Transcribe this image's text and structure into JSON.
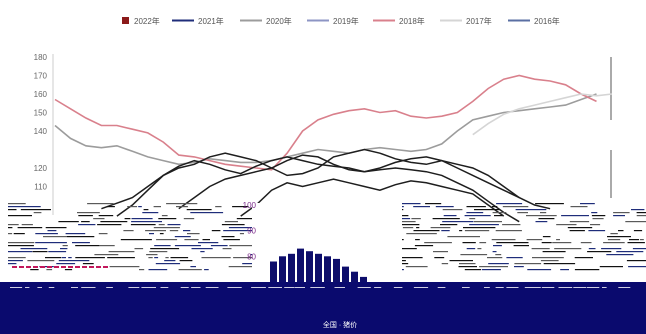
{
  "chart_data": {
    "type": "line",
    "title": "",
    "xlabel": "",
    "ylabel": "",
    "ylim": [
      100,
      180
    ],
    "yticks": [
      110,
      120,
      140,
      150,
      160,
      170,
      180
    ],
    "grid": false,
    "legend_position": "top-center",
    "series": [
      {
        "name": "2022年",
        "color": "#8b1a1a",
        "marker": "square",
        "points": []
      },
      {
        "name": "2021年",
        "color": "#1f2d7a",
        "marker": "line",
        "points": []
      },
      {
        "name": "2020年",
        "color": "#9c9c9c",
        "marker": "line",
        "points": [
          [
            0,
            143
          ],
          [
            1,
            136
          ],
          [
            2,
            132
          ],
          [
            3,
            131
          ],
          [
            4,
            132
          ],
          [
            5,
            129
          ],
          [
            6,
            126
          ],
          [
            7,
            124
          ],
          [
            8,
            122
          ],
          [
            9,
            123
          ],
          [
            10,
            125
          ],
          [
            11,
            124
          ],
          [
            12,
            123
          ],
          [
            13,
            123
          ],
          [
            14,
            124
          ],
          [
            15,
            126
          ],
          [
            16,
            128
          ],
          [
            17,
            130
          ],
          [
            18,
            129
          ],
          [
            19,
            128
          ],
          [
            20,
            130
          ],
          [
            21,
            131
          ],
          [
            22,
            130
          ],
          [
            23,
            129
          ],
          [
            24,
            130
          ],
          [
            25,
            133
          ],
          [
            26,
            140
          ],
          [
            27,
            146
          ],
          [
            28,
            148
          ],
          [
            29,
            150
          ],
          [
            30,
            151
          ],
          [
            31,
            152
          ],
          [
            32,
            153
          ],
          [
            33,
            154
          ],
          [
            34,
            157
          ],
          [
            35,
            160
          ]
        ]
      },
      {
        "name": "2019年",
        "color": "#8d95c4",
        "marker": "line",
        "points": []
      },
      {
        "name": "2018年",
        "color": "#d9808c",
        "marker": "line",
        "points": [
          [
            0,
            157
          ],
          [
            1,
            152
          ],
          [
            2,
            147
          ],
          [
            3,
            143
          ],
          [
            4,
            143
          ],
          [
            5,
            141
          ],
          [
            6,
            139
          ],
          [
            7,
            134
          ],
          [
            8,
            127
          ],
          [
            9,
            126
          ],
          [
            10,
            124
          ],
          [
            11,
            122
          ],
          [
            12,
            121
          ],
          [
            13,
            120
          ],
          [
            14,
            119
          ],
          [
            15,
            128
          ],
          [
            16,
            140
          ],
          [
            17,
            146
          ],
          [
            18,
            149
          ],
          [
            19,
            151
          ],
          [
            20,
            152
          ],
          [
            21,
            150
          ],
          [
            22,
            151
          ],
          [
            23,
            148
          ],
          [
            24,
            147
          ],
          [
            25,
            148
          ],
          [
            26,
            150
          ],
          [
            27,
            156
          ],
          [
            28,
            163
          ],
          [
            29,
            168
          ],
          [
            30,
            170
          ],
          [
            31,
            168
          ],
          [
            32,
            167
          ],
          [
            33,
            165
          ],
          [
            34,
            160
          ],
          [
            35,
            156
          ]
        ]
      },
      {
        "name": "2017年",
        "color": "#d5d5d5",
        "marker": "line",
        "points": [
          [
            27,
            138
          ],
          [
            28,
            144
          ],
          [
            29,
            149
          ],
          [
            30,
            152
          ],
          [
            31,
            154
          ],
          [
            32,
            156
          ],
          [
            33,
            158
          ],
          [
            34,
            160
          ],
          [
            35,
            159
          ],
          [
            36,
            160
          ]
        ]
      },
      {
        "name": "2016年",
        "color": "#5a6fa3",
        "marker": "line",
        "points": []
      }
    ],
    "dark_series": [
      [
        [
          4,
          94
        ],
        [
          5,
          100
        ],
        [
          6,
          108
        ],
        [
          7,
          116
        ],
        [
          8,
          121
        ],
        [
          9,
          124
        ],
        [
          10,
          122
        ],
        [
          11,
          119
        ],
        [
          12,
          117
        ],
        [
          13,
          121
        ],
        [
          14,
          124
        ],
        [
          15,
          126
        ],
        [
          16,
          124
        ],
        [
          17,
          122
        ],
        [
          18,
          121
        ],
        [
          19,
          120
        ],
        [
          20,
          118
        ],
        [
          21,
          119
        ],
        [
          22,
          120
        ],
        [
          23,
          119
        ],
        [
          24,
          118
        ],
        [
          25,
          116
        ],
        [
          26,
          112
        ],
        [
          27,
          108
        ],
        [
          28,
          102
        ],
        [
          29,
          96
        ],
        [
          30,
          91
        ]
      ],
      [
        [
          3,
          98
        ],
        [
          4,
          101
        ],
        [
          5,
          104
        ],
        [
          6,
          110
        ],
        [
          7,
          116
        ],
        [
          8,
          120
        ],
        [
          9,
          122
        ],
        [
          10,
          126
        ],
        [
          11,
          128
        ],
        [
          12,
          126
        ],
        [
          13,
          124
        ],
        [
          14,
          120
        ],
        [
          15,
          116
        ],
        [
          16,
          117
        ],
        [
          17,
          120
        ],
        [
          18,
          126
        ],
        [
          19,
          128
        ],
        [
          20,
          130
        ],
        [
          21,
          128
        ],
        [
          22,
          125
        ],
        [
          23,
          123
        ],
        [
          24,
          122
        ],
        [
          25,
          124
        ],
        [
          26,
          122
        ],
        [
          27,
          120
        ],
        [
          28,
          116
        ],
        [
          29,
          110
        ],
        [
          30,
          104
        ],
        [
          31,
          100
        ],
        [
          32,
          98
        ]
      ],
      [
        [
          8,
          98
        ],
        [
          9,
          104
        ],
        [
          10,
          110
        ],
        [
          11,
          114
        ],
        [
          12,
          116
        ],
        [
          13,
          118
        ],
        [
          14,
          120
        ],
        [
          15,
          124
        ],
        [
          16,
          127
        ],
        [
          17,
          126
        ],
        [
          18,
          122
        ],
        [
          19,
          119
        ],
        [
          20,
          118
        ],
        [
          21,
          120
        ],
        [
          22,
          123
        ],
        [
          23,
          125
        ],
        [
          24,
          126
        ],
        [
          25,
          124
        ],
        [
          26,
          120
        ],
        [
          27,
          116
        ],
        [
          28,
          112
        ],
        [
          29,
          108
        ],
        [
          30,
          104
        ]
      ],
      [
        [
          12,
          94
        ],
        [
          13,
          100
        ],
        [
          14,
          108
        ],
        [
          15,
          112
        ],
        [
          16,
          110
        ],
        [
          17,
          112
        ],
        [
          18,
          114
        ],
        [
          19,
          112
        ],
        [
          20,
          110
        ],
        [
          21,
          108
        ],
        [
          22,
          111
        ],
        [
          23,
          113
        ],
        [
          24,
          112
        ],
        [
          25,
          110
        ],
        [
          26,
          108
        ],
        [
          27,
          106
        ],
        [
          28,
          100
        ],
        [
          29,
          94
        ]
      ]
    ],
    "inset": {
      "type": "bar",
      "yticks": [
        80,
        90,
        100
      ],
      "values": [
        78,
        80,
        81,
        83,
        82,
        81,
        80,
        79,
        76,
        74,
        72
      ],
      "color": "#0d0d6b"
    }
  },
  "bottom_band": {
    "color": "#0a0a6e",
    "footer_text": "全国 · 猪价"
  }
}
